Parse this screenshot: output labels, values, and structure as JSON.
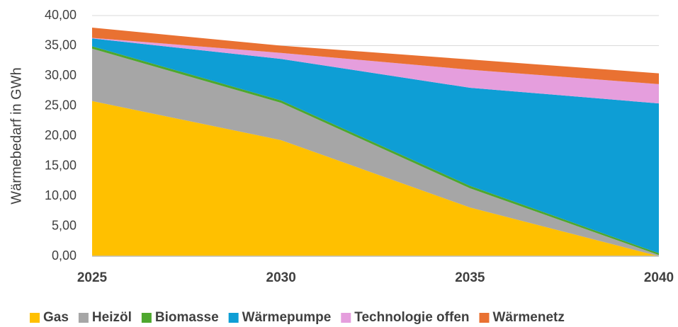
{
  "chart_data": {
    "type": "stacked_area",
    "y_label": "Wärmebedarf in GWh",
    "categories": [
      "2025",
      "2030",
      "2035",
      "2040"
    ],
    "series": [
      {
        "name": "Gas",
        "color": "#FFC000",
        "values": [
          25.8,
          19.3,
          8.1,
          0
        ]
      },
      {
        "name": "Heizöl",
        "color": "#A6A6A6",
        "values": [
          8.7,
          6.2,
          3.2,
          0.2
        ]
      },
      {
        "name": "Biomasse",
        "color": "#4EA72E",
        "values": [
          0.4,
          0.4,
          0.4,
          0.3
        ]
      },
      {
        "name": "Wärmepumpe",
        "color": "#0E9ED5",
        "values": [
          1.3,
          6.9,
          16.3,
          24.9
        ]
      },
      {
        "name": "Technologie offen",
        "color": "#E59EDD",
        "values": [
          0.1,
          1.0,
          3.0,
          3.2
        ]
      },
      {
        "name": "Wärmenetz",
        "color": "#E97132",
        "values": [
          1.7,
          1.2,
          1.7,
          1.8
        ]
      }
    ],
    "ylim": [
      0,
      40
    ],
    "yticks": [
      {
        "value": 0,
        "label": "0,00"
      },
      {
        "value": 5,
        "label": "5,00"
      },
      {
        "value": 10,
        "label": "10,00"
      },
      {
        "value": 15,
        "label": "15,00"
      },
      {
        "value": 20,
        "label": "20,00"
      },
      {
        "value": 25,
        "label": "25,00"
      },
      {
        "value": 30,
        "label": "30,00"
      },
      {
        "value": 35,
        "label": "35,00"
      },
      {
        "value": 40,
        "label": "40,00"
      }
    ],
    "grid": true,
    "legend": "bottom"
  }
}
